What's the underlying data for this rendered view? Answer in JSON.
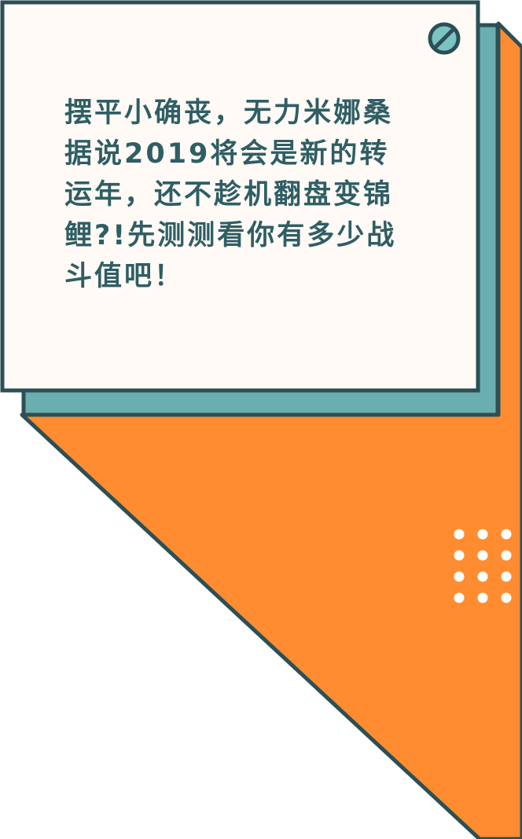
{
  "card": {
    "message": "摆平小确丧，无力米娜桑\n据说2019将会是新的转\n运年，还不趁机翻盘变锦\n鲤?!先测测看你有多少战\n斗值吧！"
  },
  "icons": {
    "card_corner_icon": "no-entry-icon",
    "dot_grid": "dot-grid"
  },
  "colors": {
    "orange": "#ff8c30",
    "teal": "#6aaeb0",
    "card_bg": "#fffaf6",
    "outline": "#2c4f55",
    "text": "#2f5e64",
    "dots": "#ffffff"
  }
}
